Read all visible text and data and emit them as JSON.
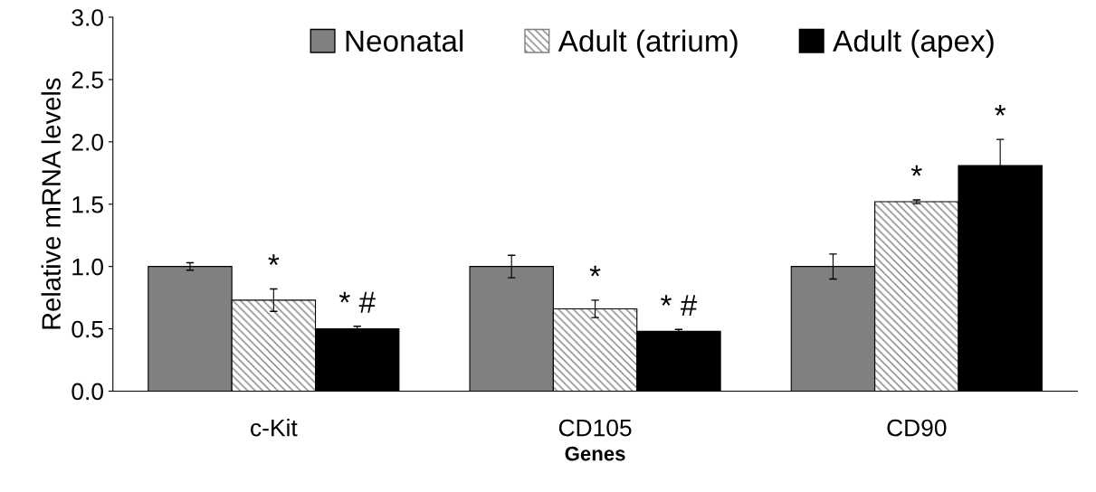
{
  "chart_data": {
    "type": "bar",
    "xlabel": "Genes",
    "ylabel": "Relative mRNA levels",
    "categories": [
      "c-Kit",
      "CD105",
      "CD90"
    ],
    "series": [
      {
        "name": "Neonatal",
        "color": "#808080",
        "values": [
          1.0,
          1.0,
          1.0
        ],
        "errors": [
          0.03,
          0.09,
          0.1
        ]
      },
      {
        "name": "Adult (atrium)",
        "color": "#7f7f7f",
        "values": [
          0.73,
          0.66,
          1.52
        ],
        "errors": [
          0.09,
          0.07,
          0.015
        ],
        "value_labels": [
          "*",
          "*",
          "*"
        ]
      },
      {
        "name": "Adult (apex)",
        "color": "#000000",
        "values": [
          0.5,
          0.48,
          1.81
        ],
        "errors": [
          0.02,
          0.015,
          0.21
        ],
        "value_labels": [
          "* #",
          "* #",
          "*"
        ]
      }
    ],
    "ylim": [
      0,
      3.0
    ],
    "yticks": [
      {
        "value": 0,
        "label": "0.0"
      },
      {
        "value": 0.5,
        "label": "0.5"
      },
      {
        "value": 1.0,
        "label": "1.0"
      },
      {
        "value": 1.5,
        "label": "1.5"
      },
      {
        "value": 2.0,
        "label": "2.0"
      },
      {
        "value": 2.5,
        "label": "2.5"
      },
      {
        "value": 3.0,
        "label": "3.0"
      }
    ],
    "grid": false,
    "legend": "top"
  }
}
